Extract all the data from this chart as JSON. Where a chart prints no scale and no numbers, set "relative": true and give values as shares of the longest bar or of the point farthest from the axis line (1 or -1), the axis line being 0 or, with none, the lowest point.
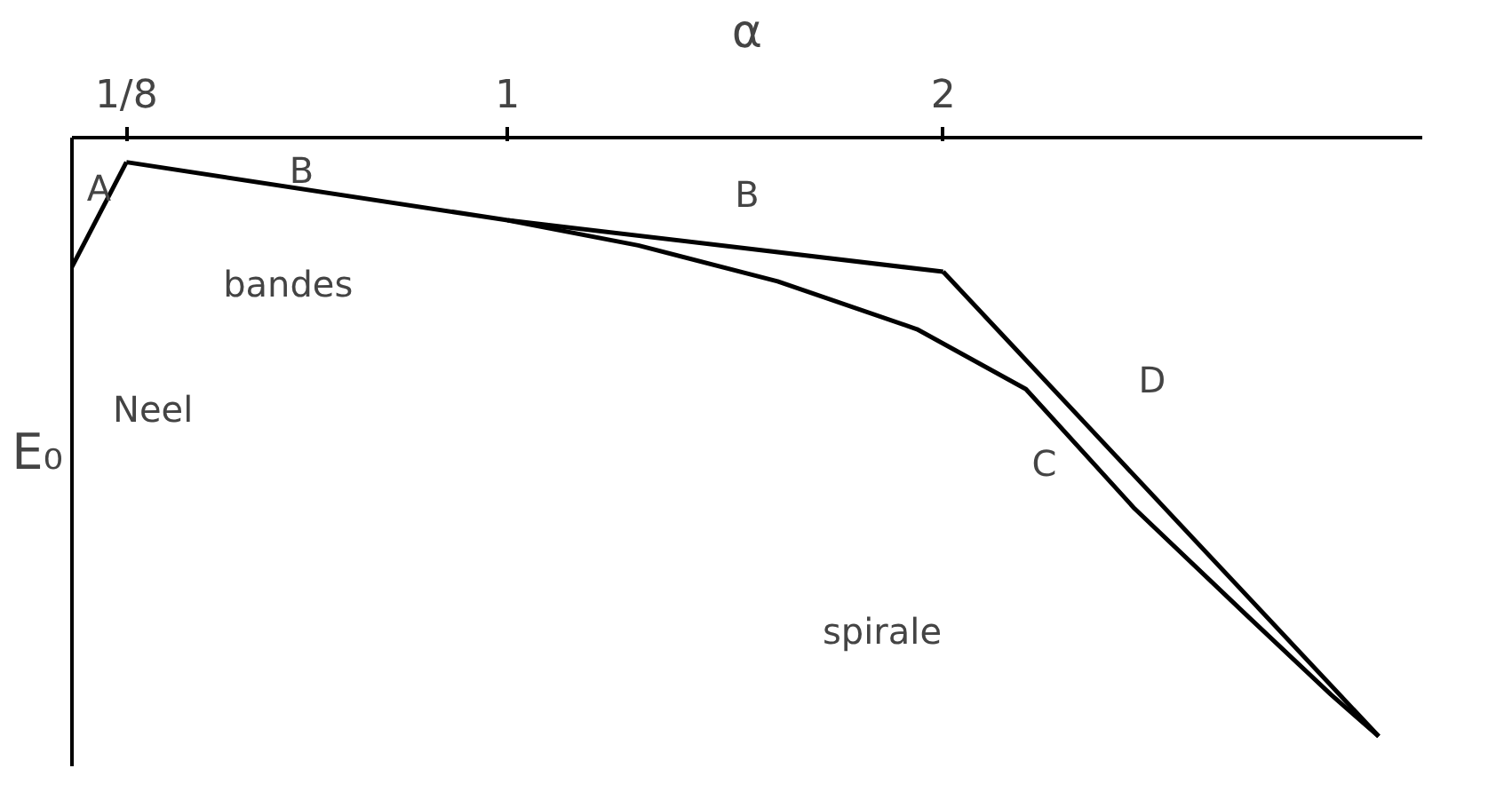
{
  "chart_data": {
    "type": "line",
    "relative": true,
    "ylabel": "E₀",
    "xlabel": "α",
    "xlim": [
      0,
      3.1
    ],
    "xticks": [
      {
        "value": 0.125,
        "label": "1/8"
      },
      1,
      2
    ],
    "grid": false,
    "marker": "none",
    "line_style": "solid",
    "series": [
      {
        "color": "#000000",
        "x": [
          0,
          0.125
        ],
        "values": [
          -0.216,
          -0.041
        ]
      },
      {
        "color": "#000000",
        "x": [
          0.125,
          1,
          2
        ],
        "values": [
          -0.041,
          -0.138,
          -0.224
        ]
      },
      {
        "color": "#000000",
        "x": [
          2,
          3.0
        ],
        "values": [
          -0.224,
          -1
        ]
      },
      {
        "color": "#000000",
        "x": [
          1,
          1.3,
          1.62,
          1.94,
          2.19,
          2.44,
          2.7,
          2.89,
          3.0
        ],
        "values": [
          -0.138,
          -0.18,
          -0.24,
          -0.32,
          -0.42,
          -0.62,
          -0.8,
          -0.93,
          -1
        ]
      }
    ],
    "annotations": [
      "A",
      "B",
      "B",
      "C",
      "D",
      "Neel",
      "bandes",
      "spirale"
    ]
  }
}
